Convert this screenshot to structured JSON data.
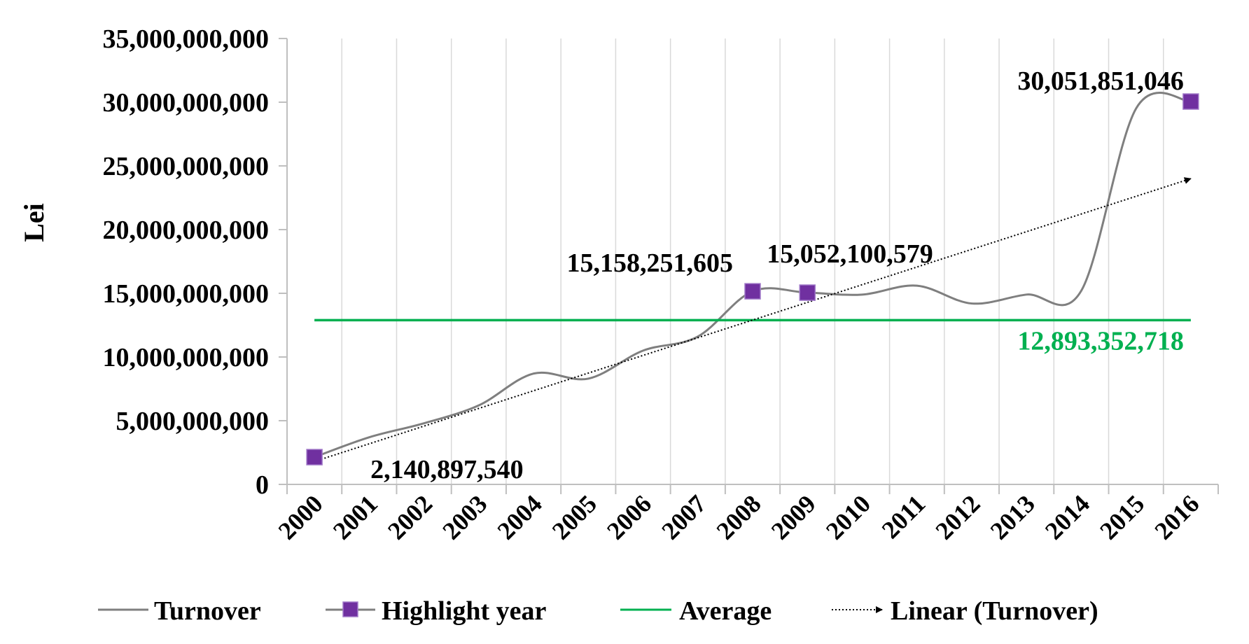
{
  "chart_data": {
    "type": "line",
    "title": "",
    "xlabel": "",
    "ylabel": "Lei",
    "ylim": [
      0,
      35000000000
    ],
    "y_ticks": [
      0,
      5000000000,
      10000000000,
      15000000000,
      20000000000,
      25000000000,
      30000000000,
      35000000000
    ],
    "y_tick_labels": [
      "0",
      "5,000,000,000",
      "10,000,000,000",
      "15,000,000,000",
      "20,000,000,000",
      "25,000,000,000",
      "30,000,000,000",
      "35,000,000,000"
    ],
    "categories": [
      "2000",
      "2001",
      "2002",
      "2003",
      "2004",
      "2005",
      "2006",
      "2007",
      "2008",
      "2009",
      "2010",
      "2011",
      "2012",
      "2013",
      "2014",
      "2015",
      "2016"
    ],
    "grid": "vertical",
    "series": [
      {
        "name": "Turnover",
        "color": "#7f7f7f",
        "style": "smooth",
        "values": [
          2140897540,
          3700000000,
          4800000000,
          6200000000,
          8700000000,
          8300000000,
          10500000000,
          11600000000,
          15158251605,
          15052100579,
          14900000000,
          15600000000,
          14200000000,
          14900000000,
          15200000000,
          29500000000,
          30051851046
        ]
      },
      {
        "name": "Average",
        "color": "#00b050",
        "style": "constant",
        "value": 12893352718
      },
      {
        "name": "Linear (Turnover)",
        "color": "#000000",
        "style": "dotted-arrow",
        "start_value": 1800000000,
        "end_value": 24000000000
      }
    ],
    "highlights": {
      "name": "Highlight year",
      "color": "#7030a0",
      "points": [
        {
          "index": 0,
          "value": 2140897540
        },
        {
          "index": 8,
          "value": 15158251605
        },
        {
          "index": 9,
          "value": 15052100579
        },
        {
          "index": 16,
          "value": 30051851046
        }
      ]
    },
    "annotations": [
      {
        "text": "2,140,897,540",
        "index": 0,
        "value": 2140897540,
        "color": "#000000"
      },
      {
        "text": "15,158,251,605",
        "index": 8,
        "value": 15158251605,
        "color": "#000000"
      },
      {
        "text": "15,052,100,579",
        "index": 9,
        "value": 15052100579,
        "color": "#000000"
      },
      {
        "text": "30,051,851,046",
        "index": 16,
        "value": 30051851046,
        "color": "#000000"
      },
      {
        "text": "12,893,352,718",
        "index": 16,
        "value": 12893352718,
        "color": "#00b050"
      }
    ],
    "legend": {
      "position": "bottom",
      "entries": [
        "Turnover",
        "Highlight year",
        "Average",
        "Linear (Turnover)"
      ]
    }
  }
}
